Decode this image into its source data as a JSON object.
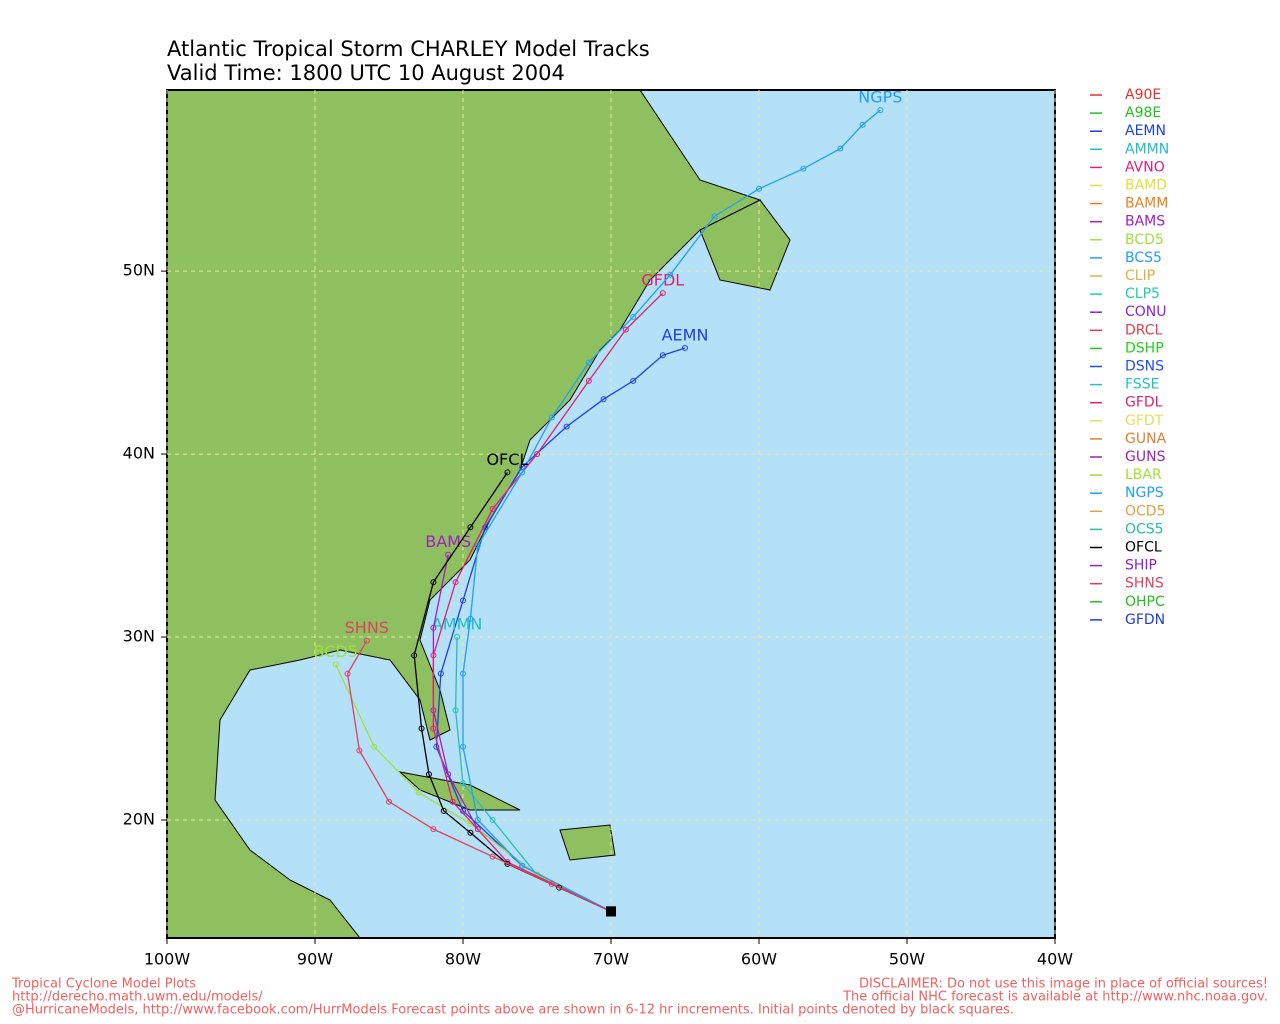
{
  "chart_data": {
    "type": "track-map",
    "title": "Atlantic Tropical Storm CHARLEY Model Tracks",
    "subtitle": "Valid Time: 1800 UTC 10 August 2004",
    "xlim": [
      -100,
      -40
    ],
    "ylim": [
      13.55,
      59.9
    ],
    "xticks": [
      {
        "value": -100,
        "label": "100W"
      },
      {
        "value": -90,
        "label": "90W"
      },
      {
        "value": -80,
        "label": "80W"
      },
      {
        "value": -70,
        "label": "70W"
      },
      {
        "value": -60,
        "label": "60W"
      },
      {
        "value": -50,
        "label": "50W"
      },
      {
        "value": -40,
        "label": "40W"
      }
    ],
    "yticks": [
      {
        "value": 20,
        "label": "20N"
      },
      {
        "value": 30,
        "label": "30N"
      },
      {
        "value": 40,
        "label": "40N"
      },
      {
        "value": 50,
        "label": "50N"
      }
    ],
    "grid": true,
    "series": [
      {
        "name": "A90E",
        "color": "#e83030"
      },
      {
        "name": "A98E",
        "color": "#20c020"
      },
      {
        "name": "AEMN",
        "color": "#2040e0",
        "lon": [
          -70,
          -76,
          -80,
          -81.8,
          -81.5,
          -80,
          -78.5,
          -76,
          -73,
          -70.5,
          -68.5,
          -66.5,
          -65
        ],
        "lat": [
          15,
          17.5,
          20.5,
          24,
          28,
          32,
          36,
          39.3,
          41.5,
          43,
          44,
          45.4,
          45.8
        ]
      },
      {
        "name": "AMMN",
        "color": "#20c0c0",
        "lon": [
          -70,
          -75,
          -78,
          -80,
          -80.5,
          -80.4
        ],
        "lat": [
          15,
          17,
          20,
          22,
          26,
          30
        ]
      },
      {
        "name": "AVNO",
        "color": "#e0207a"
      },
      {
        "name": "BAMD",
        "color": "#e0e040"
      },
      {
        "name": "BAMM",
        "color": "#f08020"
      },
      {
        "name": "BAMS",
        "color": "#a020c0",
        "lon": [
          -70,
          -75,
          -79,
          -81,
          -82,
          -82,
          -81
        ],
        "lat": [
          15,
          17,
          19.5,
          22.5,
          26,
          30.5,
          34.5
        ]
      },
      {
        "name": "BCD5",
        "color": "#a0e040",
        "lon": [
          -70,
          -75,
          -79.5,
          -83,
          -86,
          -88.6
        ],
        "lat": [
          15,
          17,
          19.8,
          21.5,
          24,
          28.5
        ]
      },
      {
        "name": "BCS5",
        "color": "#20a0f0"
      },
      {
        "name": "CLIP",
        "color": "#e0b040"
      },
      {
        "name": "CLP5",
        "color": "#20d0a0"
      },
      {
        "name": "CONU",
        "color": "#9020e0"
      },
      {
        "name": "DRCL",
        "color": "#e04050"
      },
      {
        "name": "DSHP",
        "color": "#20d020"
      },
      {
        "name": "DSNS",
        "color": "#2050f0"
      },
      {
        "name": "FSSE",
        "color": "#20c0c0"
      },
      {
        "name": "GFDL",
        "color": "#e02070",
        "lon": [
          -70,
          -77,
          -80.7,
          -82,
          -82,
          -80.5,
          -78,
          -75,
          -71.5,
          -69,
          -66.5
        ],
        "lat": [
          15,
          17.7,
          21,
          25,
          29,
          33,
          37,
          40,
          44,
          46.8,
          48.8
        ]
      },
      {
        "name": "GFDT",
        "color": "#e0e060"
      },
      {
        "name": "GUNA",
        "color": "#e08030"
      },
      {
        "name": "GUNS",
        "color": "#a020b0"
      },
      {
        "name": "LBAR",
        "color": "#a0e030"
      },
      {
        "name": "NGPS",
        "color": "#20a0f0",
        "lon": [
          -70,
          -76,
          -79,
          -80,
          -80,
          -79.5,
          -79,
          -76,
          -74,
          -71.5,
          -68.5,
          -66,
          -63,
          -60,
          -57,
          -54.5,
          -53,
          -51.8
        ],
        "lat": [
          15,
          17.5,
          20,
          24,
          28,
          31,
          35,
          39,
          42,
          45,
          47.5,
          49.8,
          53,
          54.5,
          55.6,
          56.7,
          58,
          58.8
        ]
      },
      {
        "name": "OCD5",
        "color": "#e0a040"
      },
      {
        "name": "OCS5",
        "color": "#20c0a0"
      },
      {
        "name": "OFCL",
        "color": "#000000",
        "lon": [
          -70,
          -73.5,
          -77,
          -79.5,
          -81.3,
          -82.3,
          -82.8,
          -83.3,
          -82,
          -79.5,
          -77
        ],
        "lat": [
          15,
          16.3,
          17.6,
          19.3,
          20.5,
          22.5,
          25,
          29,
          33,
          36,
          39
        ]
      },
      {
        "name": "SHIP",
        "color": "#9020d0"
      },
      {
        "name": "SHNS",
        "color": "#e04060",
        "lon": [
          -70,
          -74,
          -78,
          -82,
          -85,
          -87,
          -87.8,
          -86.5
        ],
        "lat": [
          15,
          16.5,
          18,
          19.5,
          21,
          23.8,
          28,
          29.8
        ]
      },
      {
        "name": "OHPC",
        "color": "#20c020"
      },
      {
        "name": "GFDN",
        "color": "#2040d0"
      }
    ],
    "footer_left": [
      "Tropical Cyclone Model Plots",
      "http://derecho.math.uwm.edu/models/",
      "@HurricaneModels, http://www.facebook.com/HurrModels  Forecast points above are shown in 6-12 hr increments. Initial points denoted by black squares."
    ],
    "footer_right": [
      "DISCLAIMER: Do not use this image in place of official sources!",
      "The official NHC forecast is available at http://www.nhc.noaa.gov."
    ]
  }
}
